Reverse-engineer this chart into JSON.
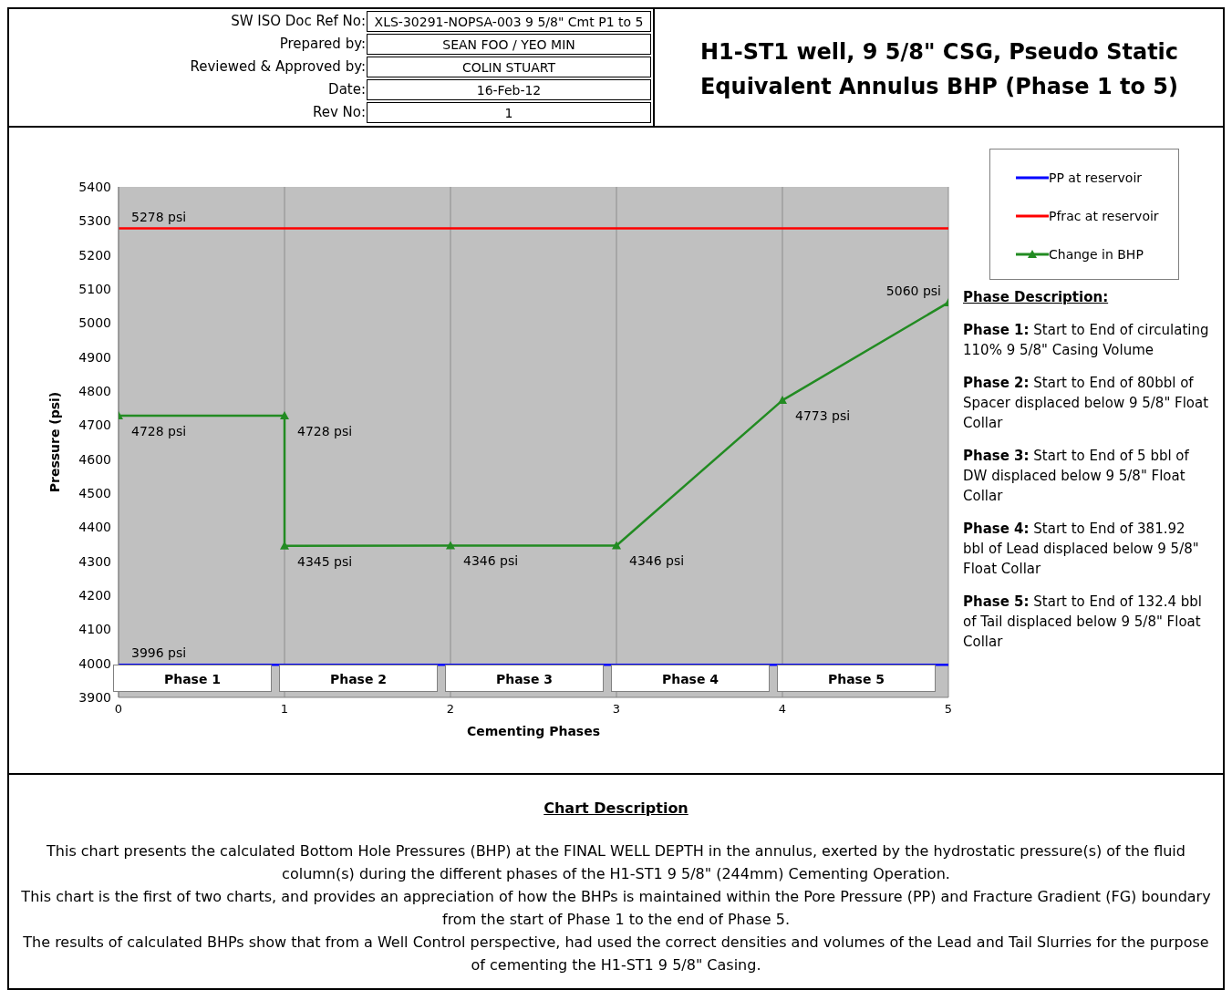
{
  "chart_data": {
    "type": "line",
    "title": "H1-ST1 well, 9 5/8\" CSG, Pseudo Static Equivalent Annulus BHP (Phase 1 to 5)",
    "xlabel": "Cementing Phases",
    "ylabel": "Pressure (psi)",
    "xlim": [
      0,
      5
    ],
    "xticks": [
      0,
      1,
      2,
      3,
      4,
      5
    ],
    "ylim": [
      3900,
      5400
    ],
    "yticks": [
      3900,
      4000,
      4100,
      4200,
      4300,
      4400,
      4500,
      4600,
      4700,
      4800,
      4900,
      5000,
      5100,
      5200,
      5300,
      5400
    ],
    "grid": "x",
    "legend": "top right",
    "line_style": "solid",
    "series": [
      {
        "name": "PP at reservoir",
        "color": "#0000ff",
        "marker": "none",
        "x": [
          0,
          5
        ],
        "values": [
          3996,
          3996
        ],
        "value_labels": [
          "3996 psi",
          null
        ]
      },
      {
        "name": "Pfrac at reservoir",
        "color": "#ff0000",
        "marker": "none",
        "x": [
          0,
          5
        ],
        "values": [
          5278,
          5278
        ],
        "value_labels": [
          "5278 psi",
          null
        ]
      },
      {
        "name": "Change in BHP",
        "color": "#228b22",
        "marker": "triangle",
        "x": [
          0,
          1,
          1,
          2,
          3,
          4,
          5
        ],
        "values": [
          4728,
          4728,
          4345,
          4346,
          4346,
          4773,
          5060
        ],
        "value_labels": [
          "4728 psi",
          "4728 psi",
          "4345 psi",
          "4346 psi",
          "4346 psi",
          "4773 psi",
          "5060 psi"
        ]
      }
    ],
    "annotations": [
      "SW ISO Doc Ref No:",
      "Prepared by:",
      "Reviewed & Approved by:",
      "Date:",
      "Rev No:",
      "XLS-30291-NOPSA-003 9 5/8\" Cmt P1 to 5",
      "SEAN FOO / YEO MIN",
      "COLIN STUART",
      "16-Feb-12",
      "1",
      "Phase Description:",
      "Phase 1: Start to End of circulating 110% 9 5/8\" Casing Volume",
      "Phase 2: Start to End of 80bbl of Spacer displaced below 9 5/8\" Float Collar",
      "Phase 3: Start to End of 5 bbl of DW displaced below 9 5/8\" Float Collar",
      "Phase 4: Start to End of 381.92 bbl of Lead  displaced below 9 5/8\" Float Collar",
      "Phase 5: Start to End  of 132.4 bbl of Tail displaced below 9 5/8\" Float Collar",
      "Phase 1",
      "Phase 2",
      "Phase 3",
      "Phase 4",
      "Phase 5",
      "Chart Description",
      "This chart presents the calculated Bottom Hole Pressures (BHP) at the FINAL WELL DEPTH in the annulus, exerted by the hydrostatic pressure(s) of the fluid column(s) during the different phases of the H1-ST1 9 5/8\" (244mm) Cementing Operation.",
      "This chart is the first of two charts, and provides an appreciation of how the BHPs is maintained within the Pore Pressure (PP) and Fracture Gradient (FG) boundary from the start of Phase 1 to the end of Phase 5.",
      "The results of calculated BHPs show that from a Well Control perspective, had used the correct densities and volumes of the Lead and Tail Slurries for the purpose of cementing the H1-ST1 9 5/8\" Casing."
    ]
  }
}
